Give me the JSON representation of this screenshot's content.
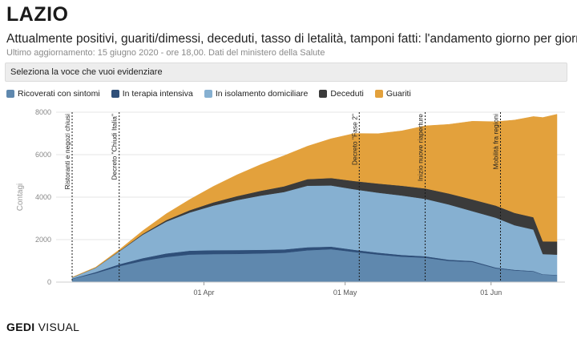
{
  "header": {
    "title": "LAZIO",
    "subtitle": "Attualmente positivi, guariti/dimessi, deceduti, tasso di letalità, tamponi fatti: l'andamento giorno per giorno",
    "updated": "Ultimo aggiornamento: 15 giugno 2020 - ore 18,00. Dati del ministero della Salute"
  },
  "selector": {
    "label": "Seleziona la voce che vuoi evidenziare"
  },
  "legend": [
    {
      "label": "Ricoverati con sintomi",
      "color": "#5f88ae"
    },
    {
      "label": "In terapia intensiva",
      "color": "#2f4f79"
    },
    {
      "label": "In isolamento domiciliare",
      "color": "#86b0d1"
    },
    {
      "label": "Deceduti",
      "color": "#3b3b3b"
    },
    {
      "label": "Guariti",
      "color": "#e3a13c"
    }
  ],
  "footer": {
    "brand": "GEDI",
    "brand_suffix": "VISUAL"
  },
  "chart_data": {
    "type": "area",
    "stacked": true,
    "x_start": "2020-03-04",
    "x_end": "2020-06-15",
    "ylabel": "Contagi",
    "ylim": [
      0,
      8000
    ],
    "yticks": [
      0,
      2000,
      4000,
      6000,
      8000
    ],
    "xticks": [
      {
        "date": "2020-04-01",
        "label": "01 Apr"
      },
      {
        "date": "2020-05-01",
        "label": "01 May"
      },
      {
        "date": "2020-06-01",
        "label": "01 Jun"
      }
    ],
    "grid": "horizontal",
    "annotations": [
      {
        "date": "2020-03-04",
        "label": "Ristoranti e negozi chiusi"
      },
      {
        "date": "2020-03-14",
        "label": "Decreto \"Chiudi Italia\""
      },
      {
        "date": "2020-05-04",
        "label": "Decreto \"Fase 2\""
      },
      {
        "date": "2020-05-18",
        "label": "Inizio nuove riaperture"
      },
      {
        "date": "2020-06-03",
        "label": "Mobilità fra regioni"
      }
    ],
    "dates": [
      "2020-03-04",
      "2020-03-09",
      "2020-03-14",
      "2020-03-19",
      "2020-03-24",
      "2020-03-29",
      "2020-04-03",
      "2020-04-08",
      "2020-04-13",
      "2020-04-18",
      "2020-04-23",
      "2020-04-28",
      "2020-05-03",
      "2020-05-08",
      "2020-05-13",
      "2020-05-18",
      "2020-05-23",
      "2020-05-28",
      "2020-06-02",
      "2020-06-06",
      "2020-06-10",
      "2020-06-12",
      "2020-06-15"
    ],
    "series": [
      {
        "name": "Ricoverati con sintomi",
        "color": "#5f88ae",
        "values": [
          150,
          420,
          750,
          1000,
          1180,
          1300,
          1320,
          1330,
          1350,
          1380,
          1500,
          1550,
          1420,
          1300,
          1200,
          1150,
          1000,
          950,
          650,
          550,
          500,
          350,
          330
        ]
      },
      {
        "name": "In terapia intensiva",
        "color": "#2f4f79",
        "values": [
          15,
          50,
          90,
          130,
          170,
          180,
          185,
          180,
          170,
          160,
          140,
          120,
          100,
          90,
          80,
          70,
          55,
          45,
          35,
          30,
          25,
          20,
          15
        ]
      },
      {
        "name": "In isolamento domiciliare",
        "color": "#86b0d1",
        "values": [
          50,
          200,
          600,
          1100,
          1500,
          1800,
          2100,
          2350,
          2550,
          2700,
          2900,
          2880,
          2850,
          2820,
          2800,
          2700,
          2600,
          2350,
          2350,
          2100,
          1950,
          950,
          950
        ]
      },
      {
        "name": "Deceduti",
        "color": "#3b3b3b",
        "values": [
          5,
          10,
          20,
          40,
          70,
          110,
          150,
          190,
          230,
          270,
          310,
          350,
          390,
          430,
          460,
          490,
          520,
          550,
          570,
          580,
          580,
          600,
          620
        ]
      },
      {
        "name": "Guariti",
        "color": "#e3a13c",
        "values": [
          5,
          20,
          60,
          150,
          300,
          500,
          750,
          1000,
          1230,
          1440,
          1550,
          1850,
          2240,
          2350,
          2580,
          2950,
          3250,
          3680,
          3950,
          4370,
          4740,
          5830,
          5985
        ]
      }
    ]
  }
}
